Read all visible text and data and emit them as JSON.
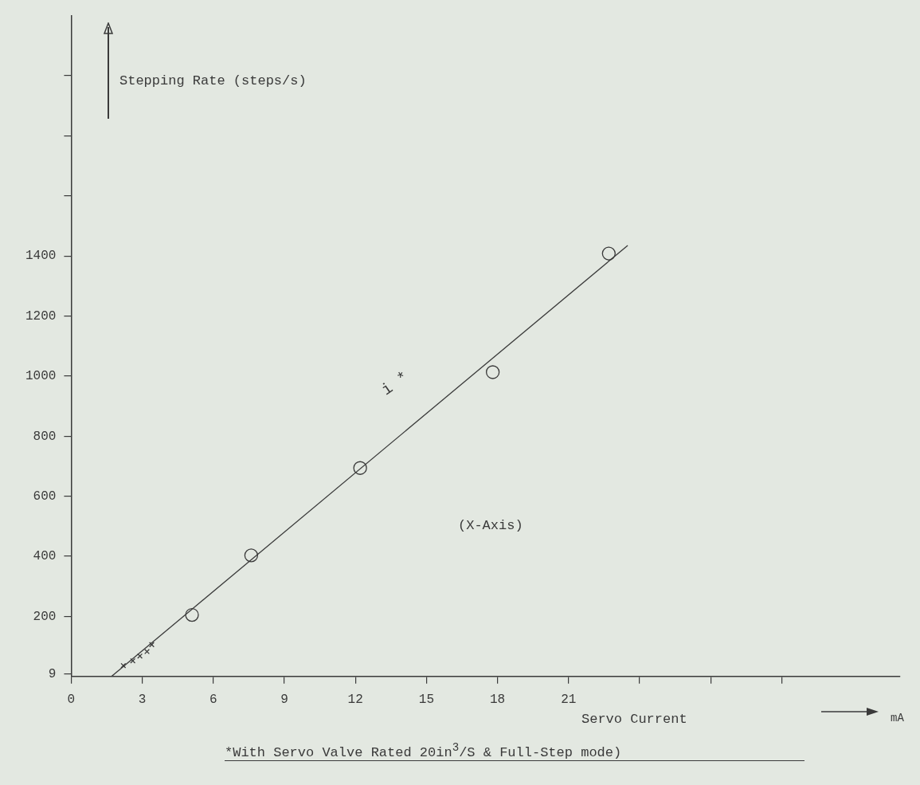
{
  "chart_data": {
    "type": "scatter",
    "xlabel": "Servo Current",
    "ylabel": "Stepping Rate (steps/s)",
    "annotations": [
      "mA",
      "(X-Axis)",
      "i *",
      "*With Servo Valve Rated 20in$^{3}$/S & Full-Step mode)"
    ],
    "xlim": [
      0,
      35
    ],
    "xticks": [
      0,
      3,
      6,
      9,
      12,
      15,
      18,
      21,
      {
        "value": 24,
        "label": null
      },
      {
        "value": 27,
        "label": null
      },
      {
        "value": 30,
        "label": null
      }
    ],
    "ylim": [
      0,
      2200
    ],
    "yticks": [
      9,
      200,
      400,
      600,
      800,
      1000,
      1200,
      1400,
      {
        "value": 1600,
        "label": null
      },
      {
        "value": 1800,
        "label": null
      },
      {
        "value": 2000,
        "label": null
      }
    ],
    "grid": false,
    "legend": false,
    "series": [
      {
        "type": "scatter",
        "marker": "circle",
        "color": "#3a3a3a",
        "x": [
          5.1,
          7.6,
          12.2,
          17.8,
          22.7
        ],
        "values": [
          205,
          403,
          694,
          1013,
          1408
        ]
      },
      {
        "type": "scatter",
        "marker": "cross",
        "color": "#3a3a3a",
        "x": [
          2.2,
          2.6,
          2.9,
          3.2,
          3.4
        ],
        "values": [
          36,
          52,
          68,
          83,
          106
        ]
      },
      {
        "type": "line",
        "marker": "none",
        "line_style": "solid",
        "color": "#3a3a3a",
        "x": [
          1.7,
          23.5
        ],
        "values": [
          0,
          1435
        ]
      }
    ]
  }
}
